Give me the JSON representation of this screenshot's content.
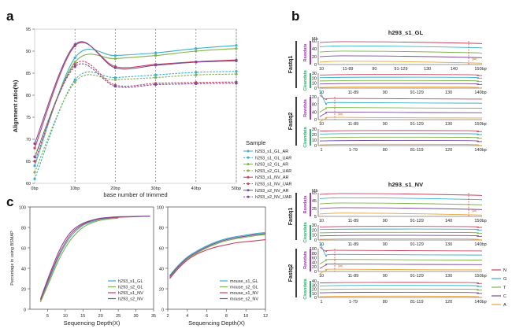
{
  "chart_data": [
    {
      "panel": "a",
      "type": "line",
      "ylabel": "Alignment ratio(%)",
      "xlabel": "base number of trimmed",
      "x": [
        "0bp",
        "10bp",
        "20bp",
        "30bp",
        "40bp",
        "50bp"
      ],
      "ylim": [
        60,
        95
      ],
      "yticks": [
        60,
        65,
        70,
        75,
        80,
        85,
        90,
        95
      ],
      "legend_title": "Sample",
      "legend_position": "right",
      "series": [
        {
          "name": "h293_s1_GL_AR",
          "color": "#3ab0c8",
          "dash": false,
          "values": [
            64,
            88.5,
            89,
            89.6,
            90.6,
            91.3
          ]
        },
        {
          "name": "h293_s1_GL_UAR",
          "color": "#3ab0c8",
          "dash": true,
          "values": [
            61,
            83.5,
            84,
            84.6,
            85.2,
            85.4
          ]
        },
        {
          "name": "h293_s2_GL_AR",
          "color": "#7fb34c",
          "dash": false,
          "values": [
            66,
            87.5,
            88.3,
            89,
            90,
            90.6
          ]
        },
        {
          "name": "h293_s2_GL_UAR",
          "color": "#7fb34c",
          "dash": true,
          "values": [
            62.5,
            83,
            83.5,
            84,
            84.6,
            84.8
          ]
        },
        {
          "name": "h293_s1_NV_AR",
          "color": "#c8415e",
          "dash": false,
          "values": [
            68,
            91.2,
            86.5,
            87,
            87.6,
            88
          ]
        },
        {
          "name": "h293_s1_NV_UAR",
          "color": "#c8415e",
          "dash": true,
          "values": [
            65,
            87,
            82.3,
            82.7,
            82.9,
            83
          ]
        },
        {
          "name": "h293_s2_NV_AR",
          "color": "#7a4a9a",
          "dash": false,
          "values": [
            69,
            91.5,
            86.2,
            86.8,
            87.5,
            87.8
          ]
        },
        {
          "name": "h293_s2_NV_UAR",
          "color": "#7a4a9a",
          "dash": true,
          "values": [
            66,
            86.5,
            82,
            82.4,
            82.6,
            82.7
          ]
        }
      ]
    },
    {
      "panel": "c-left",
      "type": "line",
      "ylabel": "Percentage in using BSMAP",
      "xlabel": "Sequencing Depth(X)",
      "xlim": [
        0,
        35
      ],
      "xticks": [
        5,
        10,
        15,
        20,
        25,
        30,
        35
      ],
      "ylim": [
        0,
        100
      ],
      "yticks": [
        0,
        20,
        40,
        60,
        80,
        100
      ],
      "legend_position": "bottom-right",
      "series": [
        {
          "name": "h293_s1_GL",
          "color": "#3ab0c8",
          "x": [
            3,
            5,
            8,
            10,
            12,
            15,
            18,
            20,
            23,
            25
          ],
          "values": [
            8,
            25,
            50,
            63,
            73,
            82,
            86,
            88,
            89,
            89.5
          ]
        },
        {
          "name": "h293_s2_GL",
          "color": "#7fb34c",
          "x": [
            3,
            5,
            8,
            10,
            12,
            15,
            18,
            20,
            23,
            25
          ],
          "values": [
            7,
            23,
            47,
            60,
            70,
            80,
            85,
            87,
            88.5,
            89
          ]
        },
        {
          "name": "h293_s1_NV",
          "color": "#c8415e",
          "x": [
            3,
            5,
            8,
            10,
            12,
            15,
            18,
            20,
            23,
            26,
            30,
            34
          ],
          "values": [
            9,
            27,
            52,
            65,
            75,
            83,
            87,
            88.5,
            89.5,
            90,
            90.5,
            91
          ]
        },
        {
          "name": "h293_s2_NV",
          "color": "#7a4a9a",
          "x": [
            3,
            5,
            8,
            10,
            12,
            15,
            18,
            20,
            23,
            26,
            30,
            34
          ],
          "values": [
            10,
            29,
            55,
            68,
            77,
            84,
            87.5,
            89,
            90,
            90.5,
            90.8,
            91
          ]
        }
      ]
    },
    {
      "panel": "c-right",
      "type": "line",
      "xlabel": "Sequencing Depth(X)",
      "xlim": [
        2,
        12
      ],
      "xticks": [
        2,
        4,
        6,
        8,
        10,
        12
      ],
      "ylim": [
        0,
        100
      ],
      "yticks": [
        0,
        20,
        40,
        60,
        80,
        100
      ],
      "legend_position": "bottom-right",
      "series": [
        {
          "name": "mouse_s1_GL",
          "color": "#3ab0c8",
          "x": [
            2.2,
            3,
            4,
            5,
            6,
            7,
            8,
            9,
            10,
            11,
            12
          ],
          "values": [
            33,
            42,
            51,
            57,
            62,
            66,
            69,
            71,
            72.5,
            74,
            75
          ]
        },
        {
          "name": "mouse_s2_GL",
          "color": "#7fb34c",
          "x": [
            2.2,
            3,
            4,
            5,
            6,
            7,
            8,
            9,
            10,
            11,
            12
          ],
          "values": [
            31,
            40,
            49,
            55,
            60,
            64,
            67,
            69,
            70.5,
            72,
            73
          ]
        },
        {
          "name": "mouse_s1_NV",
          "color": "#c8415e",
          "x": [
            2.2,
            3,
            4,
            5,
            6,
            7,
            8,
            9,
            10,
            11,
            12
          ],
          "values": [
            30,
            39,
            48,
            54,
            58,
            61,
            63,
            65,
            66,
            67,
            68
          ]
        },
        {
          "name": "mouse_s2_NV",
          "color": "#7a4a9a",
          "x": [
            2.2,
            3,
            4,
            5,
            6,
            7,
            8,
            9,
            10,
            11,
            12
          ],
          "values": [
            32,
            41,
            50,
            56,
            61,
            65,
            68,
            70,
            71.5,
            73,
            74
          ]
        }
      ]
    }
  ],
  "panel_labels": {
    "a": "a",
    "b": "b",
    "c": "c"
  },
  "panel_b": {
    "unit_label": "Mb",
    "bp_suffix": "bp",
    "scissors_icon": "scissors-icon",
    "colors": {
      "N": "#c8415e",
      "G": "#3ab0c8",
      "T": "#7fb34c",
      "C": "#7a4a9a",
      "A": "#e8a33a",
      "raw": "#9b3aa8",
      "clean": "#2da86a"
    },
    "base_legend": [
      "N",
      "G",
      "T",
      "C",
      "A"
    ],
    "groups": [
      {
        "title": "h293_s1_GL",
        "fastq": [
          {
            "label": "Fastq1",
            "raw_label": "Rawdata",
            "clean_label": "Cleandata",
            "raw_ticks": [
              "10",
              "11-89",
              "90",
              "91-129",
              "130",
              "140",
              "150bp"
            ],
            "raw_yticks": [
              "60",
              "40",
              "20",
              "0"
            ],
            "clean_ticks": [
              "10",
              "11-89",
              "90",
              "91-129",
              "130",
              "140bp"
            ],
            "clean_yticks": [
              "30",
              "20",
              "10",
              "0"
            ]
          },
          {
            "label": "Fastq2",
            "raw_label": "Rawdata",
            "clean_label": "Cleandata",
            "raw_ticks": [
              "10",
              "11-89",
              "90",
              "91-129",
              "130",
              "150bp"
            ],
            "raw_yticks": [
              "120",
              "80",
              "40",
              "0"
            ],
            "clean_ticks": [
              "1",
              "1-79",
              "80",
              "81-119",
              "120",
              "140bp"
            ],
            "clean_yticks": [
              "30",
              "20",
              "10",
              "0"
            ]
          }
        ]
      },
      {
        "title": "h293_s1_NV",
        "fastq": [
          {
            "label": "Fastq1",
            "raw_label": "Rawdata",
            "clean_label": "Cleandata",
            "raw_ticks": [
              "10",
              "11-89",
              "90",
              "91-129",
              "140",
              "150bp"
            ],
            "raw_yticks": [
              "65",
              "45",
              "25",
              "5"
            ],
            "clean_ticks": [
              "10",
              "11-89",
              "90",
              "91-129",
              "130",
              "140bp"
            ],
            "clean_yticks": [
              "30",
              "20",
              "10",
              "0"
            ]
          },
          {
            "label": "Fastq2",
            "raw_label": "Rawdata",
            "clean_label": "Cleandata",
            "raw_ticks": [
              "10",
              "11-89",
              "90",
              "91-129",
              "130",
              "150bp"
            ],
            "raw_yticks": [
              "100",
              "80",
              "60",
              "40",
              "20",
              "0"
            ],
            "clean_ticks": [
              "1",
              "1-79",
              "80",
              "81-119",
              "120",
              "140bp"
            ],
            "clean_yticks": [
              "40",
              "30",
              "20",
              "10",
              "0"
            ]
          }
        ]
      }
    ]
  }
}
